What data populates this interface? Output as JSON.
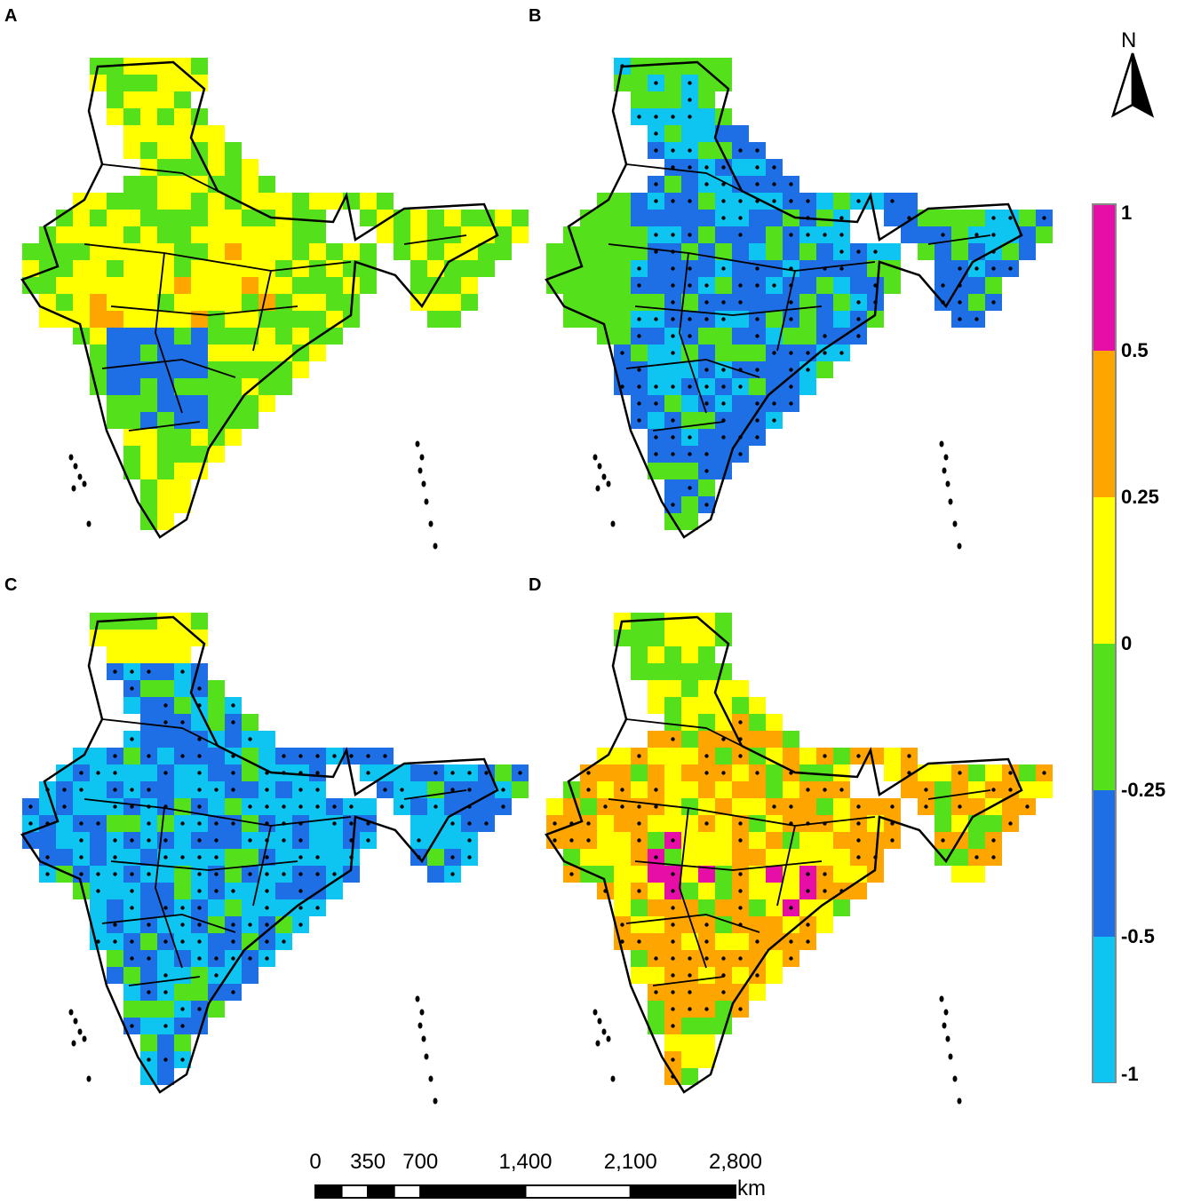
{
  "panels": [
    {
      "label": "A",
      "theme": "mixed_yellow_green"
    },
    {
      "label": "B",
      "theme": "blue_dominant"
    },
    {
      "label": "C",
      "theme": "lightblue_dominant"
    },
    {
      "label": "D",
      "theme": "orange_dominant"
    }
  ],
  "legend": {
    "ticks": [
      "1",
      "0.5",
      "0.25",
      "0",
      "-0.25",
      "-0.5",
      "-1"
    ],
    "bins": [
      {
        "from": "1",
        "to": "0.5",
        "color": "#e60ea6"
      },
      {
        "from": "0.5",
        "to": "0.25",
        "color": "#ffa500"
      },
      {
        "from": "0.25",
        "to": "0",
        "color": "#ffff00"
      },
      {
        "from": "0",
        "to": "-0.25",
        "color": "#55e01c"
      },
      {
        "from": "-0.25",
        "to": "-0.5",
        "color": "#1e6fe6"
      },
      {
        "from": "-0.5",
        "to": "-1",
        "color": "#0ec4f0"
      }
    ]
  },
  "north_arrow": {
    "label": "N"
  },
  "scale_bar": {
    "ticks": [
      "0",
      "350",
      "700",
      "1,400",
      "2,100",
      "2,800"
    ],
    "unit": "km"
  }
}
